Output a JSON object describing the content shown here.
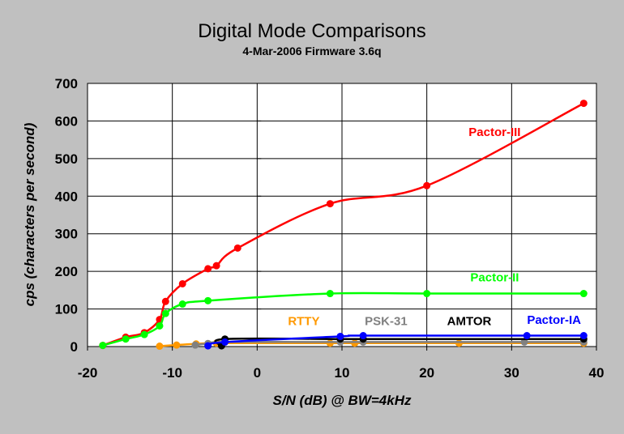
{
  "chart_data": {
    "type": "line",
    "title": "Digital Mode Comparisons",
    "subtitle": "4-Mar-2006 Firmware 3.6q",
    "xlabel": "S/N (dB) @ BW=4kHz",
    "ylabel": "cps (characters per second)",
    "xlim": [
      -20,
      40
    ],
    "ylim": [
      0,
      700
    ],
    "x_ticks": [
      "-20",
      "-10",
      "0",
      "10",
      "20",
      "30",
      "40"
    ],
    "y_ticks": [
      "0",
      "100",
      "200",
      "300",
      "400",
      "500",
      "600",
      "700"
    ],
    "x_tick_values": [
      -20,
      -10,
      0,
      10,
      20,
      30,
      40
    ],
    "y_tick_values": [
      0,
      100,
      200,
      300,
      400,
      500,
      600,
      700
    ],
    "grid": true,
    "legend": "none (series labels placed in plot)",
    "background": "#c0c0c0",
    "plot_background": "#ffffff",
    "series": [
      {
        "name": "Pactor-III",
        "color": "#ff0000",
        "x": [
          -18.2,
          -15.5,
          -13.3,
          -11.5,
          -10.8,
          -8.8,
          -5.8,
          -4.8,
          -2.3,
          8.6,
          20.0,
          38.5
        ],
        "y": [
          3,
          25,
          37,
          72,
          120,
          167,
          207,
          215,
          262,
          380,
          428,
          647
        ]
      },
      {
        "name": "Pactor-II",
        "color": "#00ff00",
        "x": [
          -18.2,
          -15.5,
          -13.3,
          -11.5,
          -10.8,
          -8.8,
          -5.8,
          8.6,
          20.0,
          38.5
        ],
        "y": [
          3,
          20,
          32,
          55,
          88,
          113,
          122,
          141,
          141,
          141
        ]
      },
      {
        "name": "RTTY",
        "color": "#ff9900",
        "x": [
          -11.5,
          -9.5,
          -7.2,
          -4.8,
          8.6,
          11.5,
          23.8,
          38.5
        ],
        "y": [
          1,
          4,
          7,
          9,
          9,
          9,
          9,
          9
        ]
      },
      {
        "name": "PSK-31",
        "color": "#808080",
        "x": [
          -7.3,
          -5.8,
          -3.8,
          9.8,
          12.5,
          31.5,
          38.5
        ],
        "y": [
          4,
          8,
          12,
          12,
          12,
          12,
          12
        ]
      },
      {
        "name": "AMTOR",
        "color": "#000000",
        "x": [
          -4.2,
          -3.8,
          9.8,
          12.5,
          38.5
        ],
        "y": [
          2,
          20,
          20,
          20,
          20
        ]
      },
      {
        "name": "Pactor-IA",
        "color": "#0000ff",
        "x": [
          -5.8,
          -3.8,
          9.8,
          12.5,
          31.8,
          38.5
        ],
        "y": [
          2,
          12,
          27,
          29,
          29,
          29
        ]
      }
    ],
    "labels": [
      {
        "text": "Pactor-III",
        "color": "#ff0000",
        "x": 28.0,
        "y": 560
      },
      {
        "text": "Pactor-II",
        "color": "#00ff00",
        "x": 28.0,
        "y": 173
      },
      {
        "text": "RTTY",
        "color": "#ff9900",
        "x": 5.5,
        "y": 57
      },
      {
        "text": "PSK-31",
        "color": "#808080",
        "x": 15.2,
        "y": 57
      },
      {
        "text": "AMTOR",
        "color": "#000000",
        "x": 25.0,
        "y": 57
      },
      {
        "text": "Pactor-IA",
        "color": "#0000ff",
        "x": 35.0,
        "y": 60
      }
    ]
  }
}
